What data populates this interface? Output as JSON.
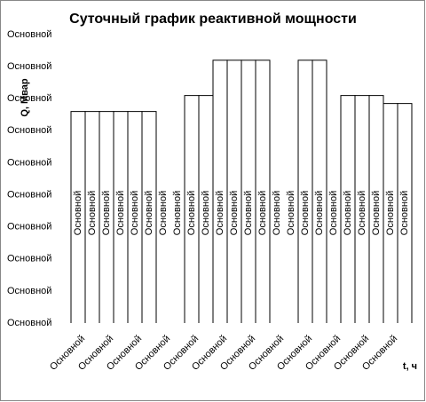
{
  "chart_data": {
    "type": "bar",
    "title": "Суточный график реактивной мощности",
    "x_label": "t, ч",
    "y_label": "Q, Мвар",
    "categories": [
      "Основной",
      null,
      "Основной",
      null,
      "Основной",
      null,
      "Основной",
      null,
      "Основной",
      null,
      "Основной",
      null,
      "Основной",
      null,
      "Основной",
      null,
      "Основной",
      null,
      "Основной",
      null,
      "Основной",
      null,
      "Основной",
      null
    ],
    "values": [
      6.6,
      6.6,
      6.6,
      6.6,
      6.6,
      6.6,
      0,
      0,
      7.1,
      7.1,
      8.2,
      8.2,
      8.2,
      8.2,
      0,
      0,
      8.2,
      8.2,
      0,
      7.1,
      7.1,
      7.1,
      6.85,
      6.85
    ],
    "value_labels": [
      "Основной",
      "Основной",
      "Основной",
      "Основной",
      "Основной",
      "Основной",
      "Основной",
      "Основной",
      "Основной",
      "Основной",
      "Основной",
      "Основной",
      "Основной",
      "Основной",
      "Основной",
      "Основной",
      "Основной",
      "Основной",
      "Основной",
      "Основной",
      "Основной",
      "Основной",
      "Основной",
      "Основной"
    ],
    "color": "#000000",
    "ylim": [
      0,
      9
    ],
    "yticks": [
      {
        "value": 0,
        "label": "Основной"
      },
      {
        "value": 1,
        "label": "Основной"
      },
      {
        "value": 2,
        "label": "Основной"
      },
      {
        "value": 3,
        "label": "Основной"
      },
      {
        "value": 4,
        "label": "Основной"
      },
      {
        "value": 5,
        "label": "Основной"
      },
      {
        "value": 6,
        "label": "Основной"
      },
      {
        "value": 7,
        "label": "Основной"
      },
      {
        "value": 8,
        "label": "Основной"
      },
      {
        "value": 9,
        "label": "Основной"
      }
    ],
    "grid": false
  }
}
